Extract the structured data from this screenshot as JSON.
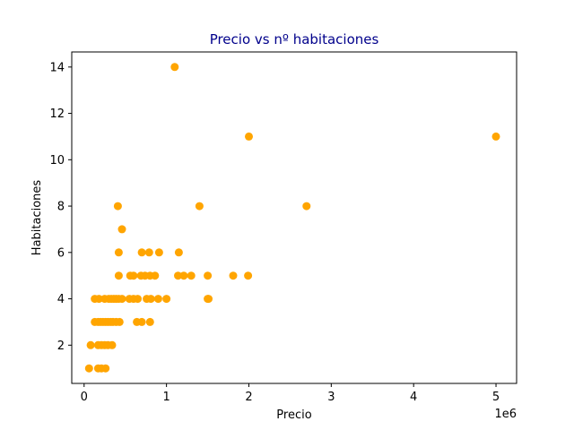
{
  "chart_data": {
    "type": "scatter",
    "title": "Precio vs nº habitaciones",
    "xlabel": "Precio",
    "ylabel": "Habitaciones",
    "x_offset_text": "1e6",
    "x_ticks": [
      0,
      1,
      2,
      3,
      4,
      5
    ],
    "x_tick_labels": [
      "0",
      "1",
      "2",
      "3",
      "4",
      "5"
    ],
    "y_ticks": [
      2,
      4,
      6,
      8,
      10,
      12,
      14
    ],
    "y_tick_labels": [
      "2",
      "4",
      "6",
      "8",
      "10",
      "12",
      "14"
    ],
    "xlim": [
      -150000,
      5250000
    ],
    "ylim": [
      0.35,
      14.65
    ],
    "grid": false,
    "colors": {
      "points": "#FFA500",
      "title": "#00008B"
    },
    "points": [
      {
        "x": 60000,
        "y": 1
      },
      {
        "x": 170000,
        "y": 1
      },
      {
        "x": 210000,
        "y": 1
      },
      {
        "x": 260000,
        "y": 1
      },
      {
        "x": 80000,
        "y": 2
      },
      {
        "x": 170000,
        "y": 2
      },
      {
        "x": 210000,
        "y": 2
      },
      {
        "x": 250000,
        "y": 2
      },
      {
        "x": 290000,
        "y": 2
      },
      {
        "x": 340000,
        "y": 2
      },
      {
        "x": 130000,
        "y": 3
      },
      {
        "x": 170000,
        "y": 3
      },
      {
        "x": 200000,
        "y": 3
      },
      {
        "x": 230000,
        "y": 3
      },
      {
        "x": 260000,
        "y": 3
      },
      {
        "x": 290000,
        "y": 3
      },
      {
        "x": 320000,
        "y": 3
      },
      {
        "x": 350000,
        "y": 3
      },
      {
        "x": 390000,
        "y": 3
      },
      {
        "x": 430000,
        "y": 3
      },
      {
        "x": 640000,
        "y": 3
      },
      {
        "x": 700000,
        "y": 3
      },
      {
        "x": 800000,
        "y": 3
      },
      {
        "x": 130000,
        "y": 4
      },
      {
        "x": 180000,
        "y": 4
      },
      {
        "x": 250000,
        "y": 4
      },
      {
        "x": 300000,
        "y": 4
      },
      {
        "x": 330000,
        "y": 4
      },
      {
        "x": 360000,
        "y": 4
      },
      {
        "x": 390000,
        "y": 4
      },
      {
        "x": 420000,
        "y": 4
      },
      {
        "x": 460000,
        "y": 4
      },
      {
        "x": 550000,
        "y": 4
      },
      {
        "x": 600000,
        "y": 4
      },
      {
        "x": 650000,
        "y": 4
      },
      {
        "x": 760000,
        "y": 4
      },
      {
        "x": 810000,
        "y": 4
      },
      {
        "x": 900000,
        "y": 4
      },
      {
        "x": 1000000,
        "y": 4
      },
      {
        "x": 1500000,
        "y": 4
      },
      {
        "x": 1510000,
        "y": 4
      },
      {
        "x": 420000,
        "y": 5
      },
      {
        "x": 560000,
        "y": 5
      },
      {
        "x": 600000,
        "y": 5
      },
      {
        "x": 690000,
        "y": 5
      },
      {
        "x": 740000,
        "y": 5
      },
      {
        "x": 800000,
        "y": 5
      },
      {
        "x": 860000,
        "y": 5
      },
      {
        "x": 1140000,
        "y": 5
      },
      {
        "x": 1210000,
        "y": 5
      },
      {
        "x": 1300000,
        "y": 5
      },
      {
        "x": 1500000,
        "y": 5
      },
      {
        "x": 1810000,
        "y": 5
      },
      {
        "x": 1990000,
        "y": 5
      },
      {
        "x": 420000,
        "y": 6
      },
      {
        "x": 700000,
        "y": 6
      },
      {
        "x": 790000,
        "y": 6
      },
      {
        "x": 910000,
        "y": 6
      },
      {
        "x": 1150000,
        "y": 6
      },
      {
        "x": 460000,
        "y": 7
      },
      {
        "x": 410000,
        "y": 8
      },
      {
        "x": 1400000,
        "y": 8
      },
      {
        "x": 2700000,
        "y": 8
      },
      {
        "x": 2000000,
        "y": 11
      },
      {
        "x": 5000000,
        "y": 11
      },
      {
        "x": 1100000,
        "y": 14
      }
    ]
  }
}
